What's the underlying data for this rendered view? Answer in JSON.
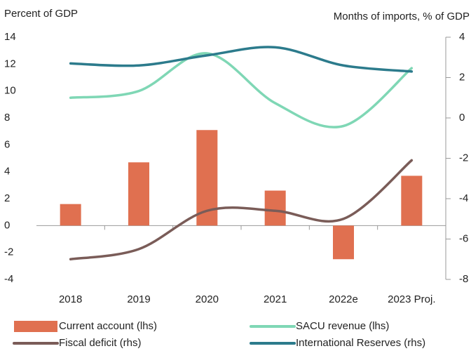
{
  "chart_data": {
    "type": "bar-line",
    "y_label": "Percent of GDP",
    "y2_label": "Months of imports, % of GDP",
    "categories": [
      "2018",
      "2019",
      "2020",
      "2021",
      "2022e",
      "2023 Proj."
    ],
    "series": [
      {
        "name": "Current account (lhs)",
        "type": "bar",
        "color": "#e07050",
        "values": [
          1.6,
          4.7,
          7.1,
          2.6,
          -2.5,
          3.7
        ]
      },
      {
        "name": "SACU revenue (lhs)",
        "type": "line",
        "color": "#7fd7b5",
        "values": [
          9.5,
          10.0,
          12.8,
          9.1,
          7.4,
          11.7
        ]
      },
      {
        "name": "Fiscal deficit (rhs)",
        "type": "line",
        "axis": "y2",
        "color": "#7a5c58",
        "values": [
          -7.0,
          -6.5,
          -4.6,
          -4.6,
          -5.0,
          -2.1
        ]
      },
      {
        "name": "International Reserves (rhs)",
        "type": "line",
        "axis": "y2",
        "color": "#2c7b8c",
        "values": [
          2.7,
          2.6,
          3.1,
          3.5,
          2.6,
          2.3
        ]
      }
    ],
    "ylim": [
      -4,
      14
    ],
    "yticks": [
      -4,
      -2,
      0,
      2,
      4,
      6,
      8,
      10,
      12,
      14
    ],
    "y2lim": [
      -8,
      4
    ],
    "y2ticks": [
      -8,
      -6,
      -4,
      -2,
      0,
      2,
      4
    ]
  }
}
